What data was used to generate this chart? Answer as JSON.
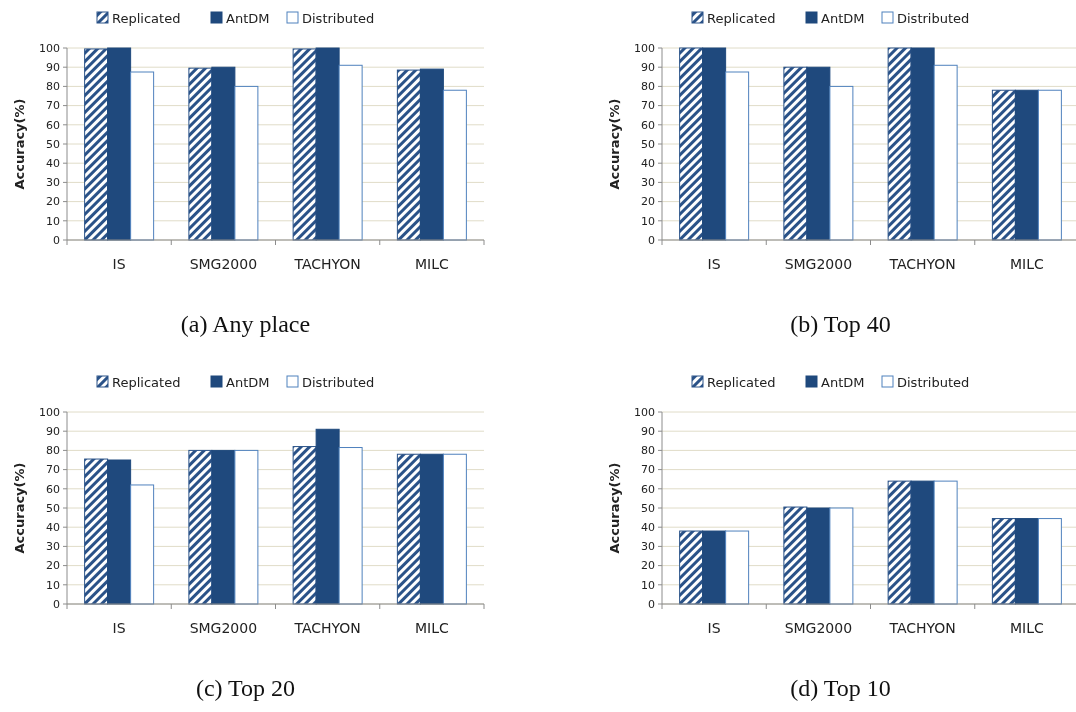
{
  "chart_data": [
    {
      "type": "bar",
      "title": "(a) Any place",
      "ylabel": "Accuracy(%)",
      "categories": [
        "IS",
        "SMG2000",
        "TACHYON",
        "MILC"
      ],
      "ylim": [
        0,
        100
      ],
      "yticks": [
        0,
        10,
        20,
        30,
        40,
        50,
        60,
        70,
        80,
        90,
        100
      ],
      "grid": "y",
      "legend": "top",
      "series": [
        {
          "name": "Replicated",
          "color": "#2a5288",
          "values": [
            99.5,
            89.5,
            99.5,
            88.5
          ]
        },
        {
          "name": "AntDM",
          "color": "#1f497d",
          "values": [
            100,
            90,
            100,
            89
          ]
        },
        {
          "name": "Distributed",
          "color": "#ffffff",
          "values": [
            87.5,
            80,
            91,
            78
          ]
        }
      ]
    },
    {
      "type": "bar",
      "title": "(b) Top 40",
      "ylabel": "Accuracy(%)",
      "categories": [
        "IS",
        "SMG2000",
        "TACHYON",
        "MILC"
      ],
      "ylim": [
        0,
        100
      ],
      "yticks": [
        0,
        10,
        20,
        30,
        40,
        50,
        60,
        70,
        80,
        90,
        100
      ],
      "grid": "y",
      "legend": "top",
      "series": [
        {
          "name": "Replicated",
          "color": "#2a5288",
          "values": [
            100,
            90,
            100,
            78
          ]
        },
        {
          "name": "AntDM",
          "color": "#1f497d",
          "values": [
            100,
            90,
            100,
            78
          ]
        },
        {
          "name": "Distributed",
          "color": "#ffffff",
          "values": [
            87.5,
            80,
            91,
            78
          ]
        }
      ]
    },
    {
      "type": "bar",
      "title": "(c) Top 20",
      "ylabel": "Accuracy(%)",
      "categories": [
        "IS",
        "SMG2000",
        "TACHYON",
        "MILC"
      ],
      "ylim": [
        0,
        100
      ],
      "yticks": [
        0,
        10,
        20,
        30,
        40,
        50,
        60,
        70,
        80,
        90,
        100
      ],
      "grid": "y",
      "legend": "top",
      "series": [
        {
          "name": "Replicated",
          "color": "#2a5288",
          "values": [
            75.5,
            80,
            82,
            78
          ]
        },
        {
          "name": "AntDM",
          "color": "#1f497d",
          "values": [
            75,
            80,
            91,
            78
          ]
        },
        {
          "name": "Distributed",
          "color": "#ffffff",
          "values": [
            62,
            80,
            81.5,
            78
          ]
        }
      ]
    },
    {
      "type": "bar",
      "title": "(d) Top 10",
      "ylabel": "Accuracy(%)",
      "categories": [
        "IS",
        "SMG2000",
        "TACHYON",
        "MILC"
      ],
      "ylim": [
        0,
        100
      ],
      "yticks": [
        0,
        10,
        20,
        30,
        40,
        50,
        60,
        70,
        80,
        90,
        100
      ],
      "grid": "y",
      "legend": "top",
      "series": [
        {
          "name": "Replicated",
          "color": "#2a5288",
          "values": [
            38,
            50.5,
            64,
            44.5
          ]
        },
        {
          "name": "AntDM",
          "color": "#1f497d",
          "values": [
            38,
            50,
            64,
            44.5
          ]
        },
        {
          "name": "Distributed",
          "color": "#ffffff",
          "values": [
            38,
            50,
            64,
            44.5
          ]
        }
      ]
    }
  ]
}
